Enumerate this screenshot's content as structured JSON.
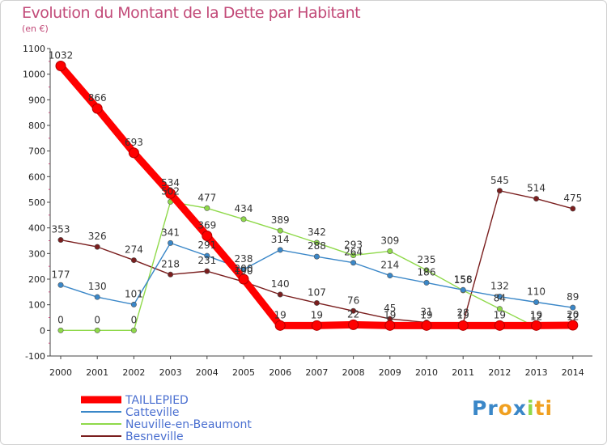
{
  "chart_data": {
    "type": "line",
    "title": "Evolution du Montant de la Dette par Habitant",
    "subtitle": "(en €)",
    "x": [
      "2000",
      "2001",
      "2002",
      "2003",
      "2004",
      "2005",
      "2006",
      "2007",
      "2008",
      "2009",
      "2010",
      "2011",
      "2012",
      "2013",
      "2014"
    ],
    "y_ticks": [
      "-100",
      "0",
      "100",
      "200",
      "300",
      "400",
      "500",
      "600",
      "700",
      "800",
      "900",
      "1000",
      "1100"
    ],
    "ylim": [
      -100,
      1100
    ],
    "grid": "none",
    "legend_position": "bottom-left",
    "series": [
      {
        "name": "TAILLEPIED",
        "color": "#ff0000",
        "values": [
          1032,
          866,
          693,
          534,
          369,
          200,
          19,
          19,
          22,
          19,
          19,
          19,
          19,
          19,
          20
        ],
        "labels": [
          "1032",
          "866",
          "693",
          "534",
          "369",
          "200",
          "19",
          "19",
          "22",
          "19",
          "19",
          "19",
          "19",
          "19",
          "20"
        ]
      },
      {
        "name": "Catteville",
        "color": "#3a87c8",
        "values": [
          177,
          130,
          101,
          341,
          291,
          238,
          314,
          288,
          264,
          214,
          186,
          158,
          132,
          110,
          89
        ],
        "labels": [
          "177",
          "130",
          "101",
          "341",
          "291",
          "238",
          "314",
          "288",
          "264",
          "214",
          "186",
          "158",
          "132",
          "110",
          "89"
        ]
      },
      {
        "name": "Neuville-en-Beaumont",
        "color": "#8fd94a",
        "values": [
          0,
          0,
          0,
          502,
          477,
          434,
          389,
          342,
          293,
          309,
          235,
          156,
          84,
          12,
          12
        ],
        "labels": [
          "0",
          "0",
          "0",
          "502",
          "477",
          "434",
          "389",
          "342",
          "293",
          "309",
          "235",
          "156",
          "84",
          "12",
          "12"
        ]
      },
      {
        "name": "Besneville",
        "color": "#7a1e1e",
        "values": [
          353,
          326,
          274,
          218,
          231,
          190,
          140,
          107,
          76,
          45,
          31,
          28,
          545,
          514,
          475
        ],
        "labels": [
          "353",
          "326",
          "274",
          "218",
          "231",
          "190",
          "140",
          "107",
          "76",
          "45",
          "31",
          "28",
          "545",
          "514",
          "475"
        ]
      }
    ]
  },
  "brand": {
    "parts": [
      "Pr",
      "o",
      "x",
      "i",
      "ti"
    ],
    "colors": [
      "#3a87c8",
      "#f0a020",
      "#3a87c8",
      "#8fd94a",
      "#f0a020"
    ]
  }
}
